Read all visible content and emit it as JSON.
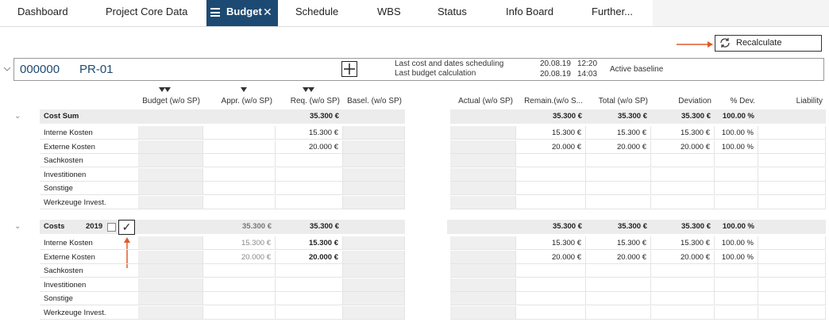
{
  "tabs": [
    "Dashboard",
    "Project Core Data",
    "Budget",
    "Schedule",
    "WBS",
    "Status",
    "Info Board",
    "Further..."
  ],
  "toolbar": {
    "recalculate": "Recalculate"
  },
  "project": {
    "number": "000000",
    "code": "PR-01",
    "last_cost_label": "Last cost and dates scheduling",
    "last_budget_label": "Last budget calculation",
    "last_cost_date": "20.08.19",
    "last_cost_time": "12:20",
    "last_budget_date": "20.08.19",
    "last_budget_time": "14:03",
    "baseline": "Active baseline"
  },
  "columns": [
    "Budget (w/o SP)",
    "Appr. (w/o SP)",
    "Req. (w/o SP)",
    "Basel. (w/o SP)",
    "Actual (w/o SP)",
    "Remain.(w/o S...",
    "Total (w/o SP)",
    "Deviation",
    "% Dev.",
    "Liability"
  ],
  "sections": [
    {
      "label": "Cost Sum",
      "values": [
        null,
        null,
        "35.300 €",
        null,
        null,
        "35.300 €",
        "35.300 €",
        "35.300 €",
        "100.00 %",
        null
      ],
      "rows": [
        {
          "label": "Interne Kosten",
          "values": [
            null,
            null,
            "15.300 €",
            null,
            null,
            "15.300 €",
            "15.300 €",
            "15.300 €",
            "100.00 %",
            null
          ]
        },
        {
          "label": "Externe Kosten",
          "values": [
            null,
            null,
            "20.000 €",
            null,
            null,
            "20.000 €",
            "20.000 €",
            "20.000 €",
            "100.00 %",
            null
          ]
        },
        {
          "label": "Sachkosten",
          "values": [
            null,
            null,
            null,
            null,
            null,
            null,
            null,
            null,
            null,
            null
          ]
        },
        {
          "label": "Investitionen",
          "values": [
            null,
            null,
            null,
            null,
            null,
            null,
            null,
            null,
            null,
            null
          ]
        },
        {
          "label": "Sonstige",
          "values": [
            null,
            null,
            null,
            null,
            null,
            null,
            null,
            null,
            null,
            null
          ]
        },
        {
          "label": "Werkzeuge Invest.",
          "values": [
            null,
            null,
            null,
            null,
            null,
            null,
            null,
            null,
            null,
            null
          ]
        }
      ]
    },
    {
      "label": "Costs",
      "year": "2019",
      "values": [
        null,
        "35.300 €",
        "35.300 €",
        null,
        null,
        "35.300 €",
        "35.300 €",
        "35.300 €",
        "100.00 %",
        null
      ],
      "rows": [
        {
          "label": "Interne Kosten",
          "values": [
            null,
            "15.300 €",
            "15.300 €",
            null,
            null,
            "15.300 €",
            "15.300 €",
            "15.300 €",
            "100.00 %",
            null
          ]
        },
        {
          "label": "Externe Kosten",
          "values": [
            null,
            "20.000 €",
            "20.000 €",
            null,
            null,
            "20.000 €",
            "20.000 €",
            "20.000 €",
            "100.00 %",
            null
          ]
        },
        {
          "label": "Sachkosten",
          "values": [
            null,
            null,
            null,
            null,
            null,
            null,
            null,
            null,
            null,
            null
          ]
        },
        {
          "label": "Investitionen",
          "values": [
            null,
            null,
            null,
            null,
            null,
            null,
            null,
            null,
            null,
            null
          ]
        },
        {
          "label": "Sonstige",
          "values": [
            null,
            null,
            null,
            null,
            null,
            null,
            null,
            null,
            null,
            null
          ]
        },
        {
          "label": "Werkzeuge Invest.",
          "values": [
            null,
            null,
            null,
            null,
            null,
            null,
            null,
            null,
            null,
            null
          ]
        }
      ]
    }
  ]
}
